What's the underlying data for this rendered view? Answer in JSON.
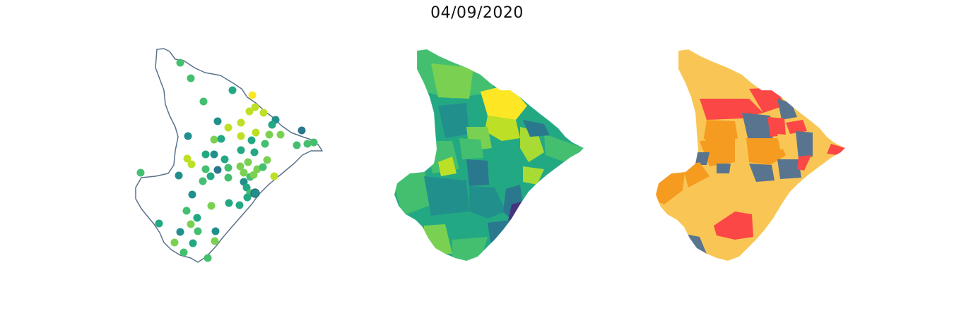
{
  "title": "04/09/2020",
  "panels": [
    {
      "kind": "point-map",
      "outline_color": "#5a7189",
      "background": "#ffffff",
      "point_colors": [
        "#23a884",
        "#21908d",
        "#2a788e",
        "#44bf70",
        "#7ad151",
        "#bddf26",
        "#fde725"
      ]
    },
    {
      "kind": "choropleth",
      "palette": "viridis",
      "region_colors": [
        "#46337e",
        "#2a788e",
        "#21908d",
        "#23a884",
        "#44bf70",
        "#7ad151",
        "#a8db34",
        "#fde725"
      ]
    },
    {
      "kind": "categorical-choropleth",
      "category_colors": [
        "#f9c655",
        "#f59b20",
        "#fb4846",
        "#59748f"
      ]
    }
  ]
}
